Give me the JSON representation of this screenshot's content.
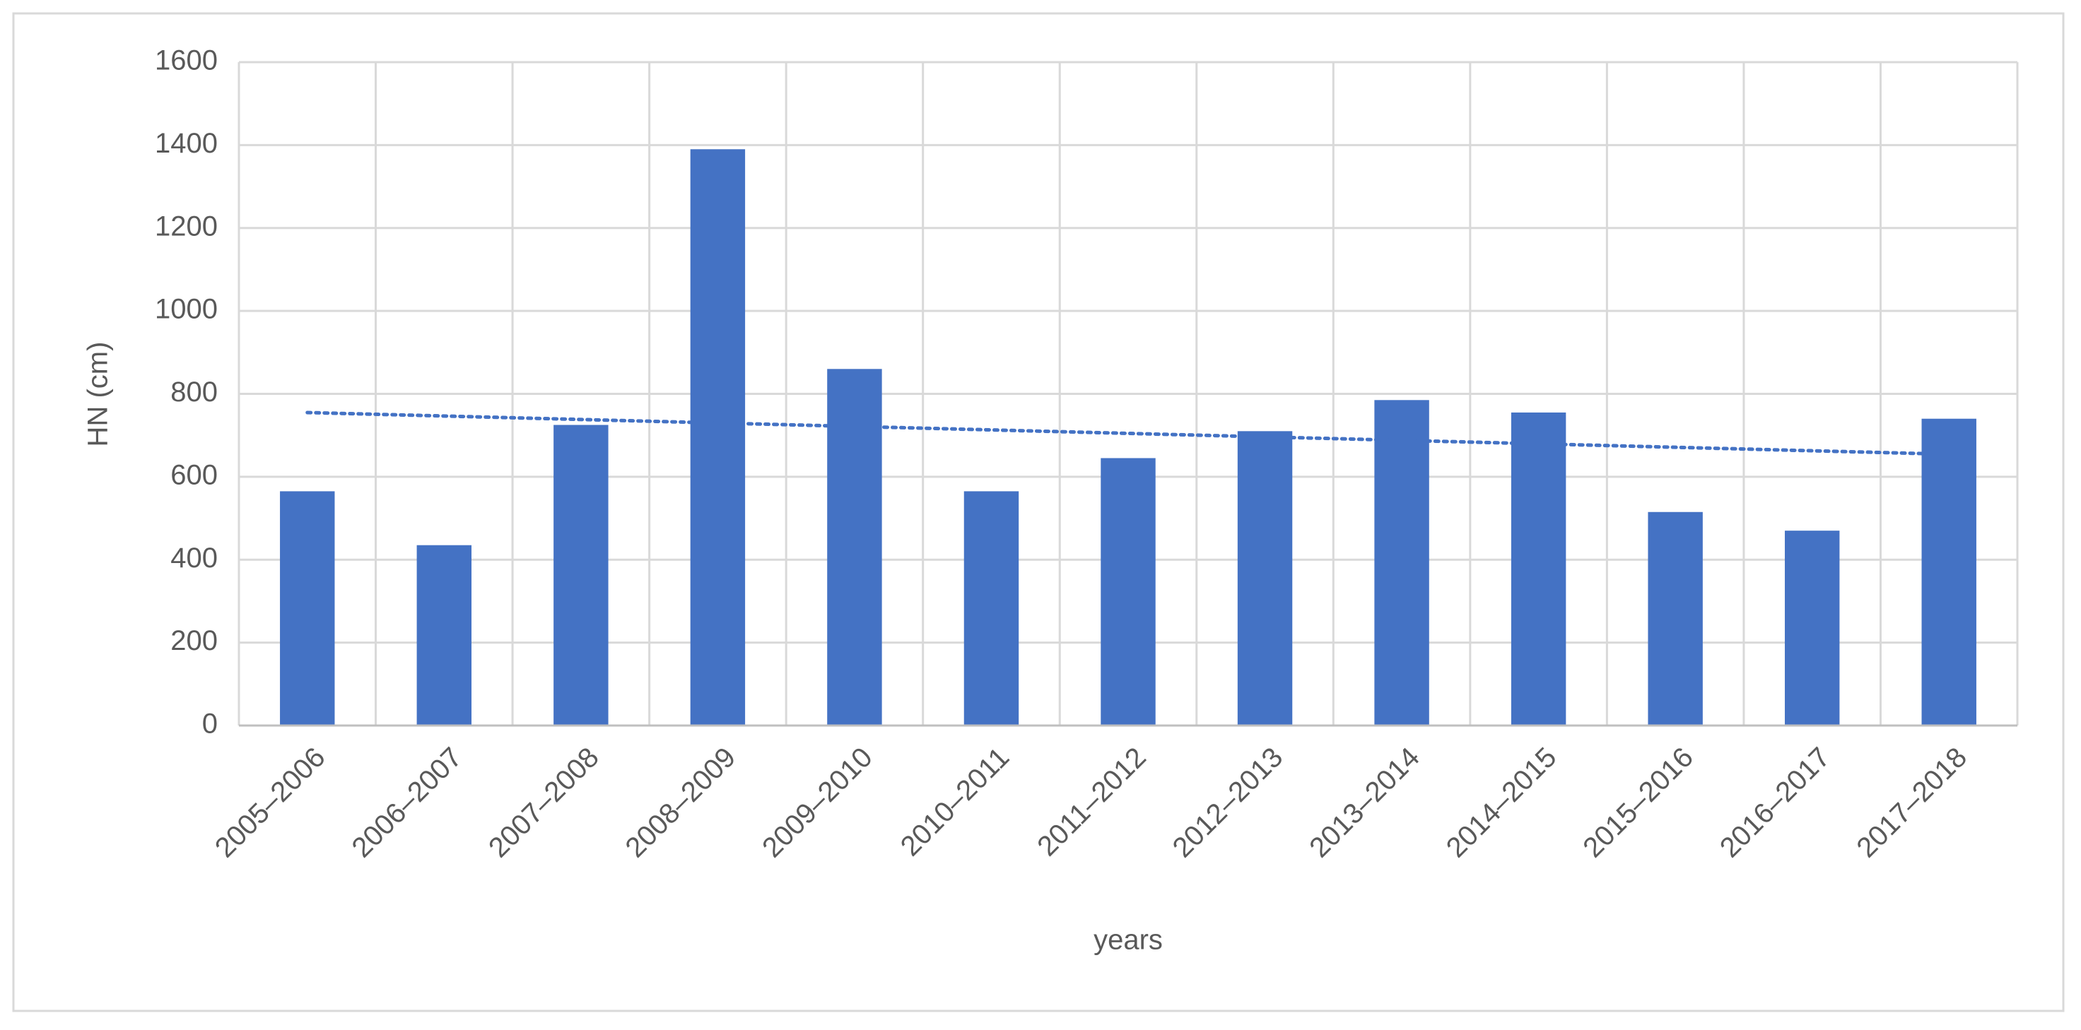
{
  "chart_data": {
    "type": "bar",
    "x_label": "years",
    "y_label": "HN (cm)",
    "categories": [
      "2005–2006",
      "2006–2007",
      "2007–2008",
      "2008–2009",
      "2009–2010",
      "2010–2011",
      "2011–2012",
      "2012–2013",
      "2013–2014",
      "2014–2015",
      "2015–2016",
      "2016–2017",
      "2017–2018"
    ],
    "values": [
      565,
      435,
      725,
      1390,
      860,
      565,
      645,
      710,
      785,
      755,
      515,
      470,
      740
    ],
    "color": "#4472c4",
    "ylim": [
      0,
      1600
    ],
    "yticks": [
      0,
      200,
      400,
      600,
      800,
      1000,
      1200,
      1400,
      1600
    ],
    "grid": true,
    "trendline": "linear"
  }
}
